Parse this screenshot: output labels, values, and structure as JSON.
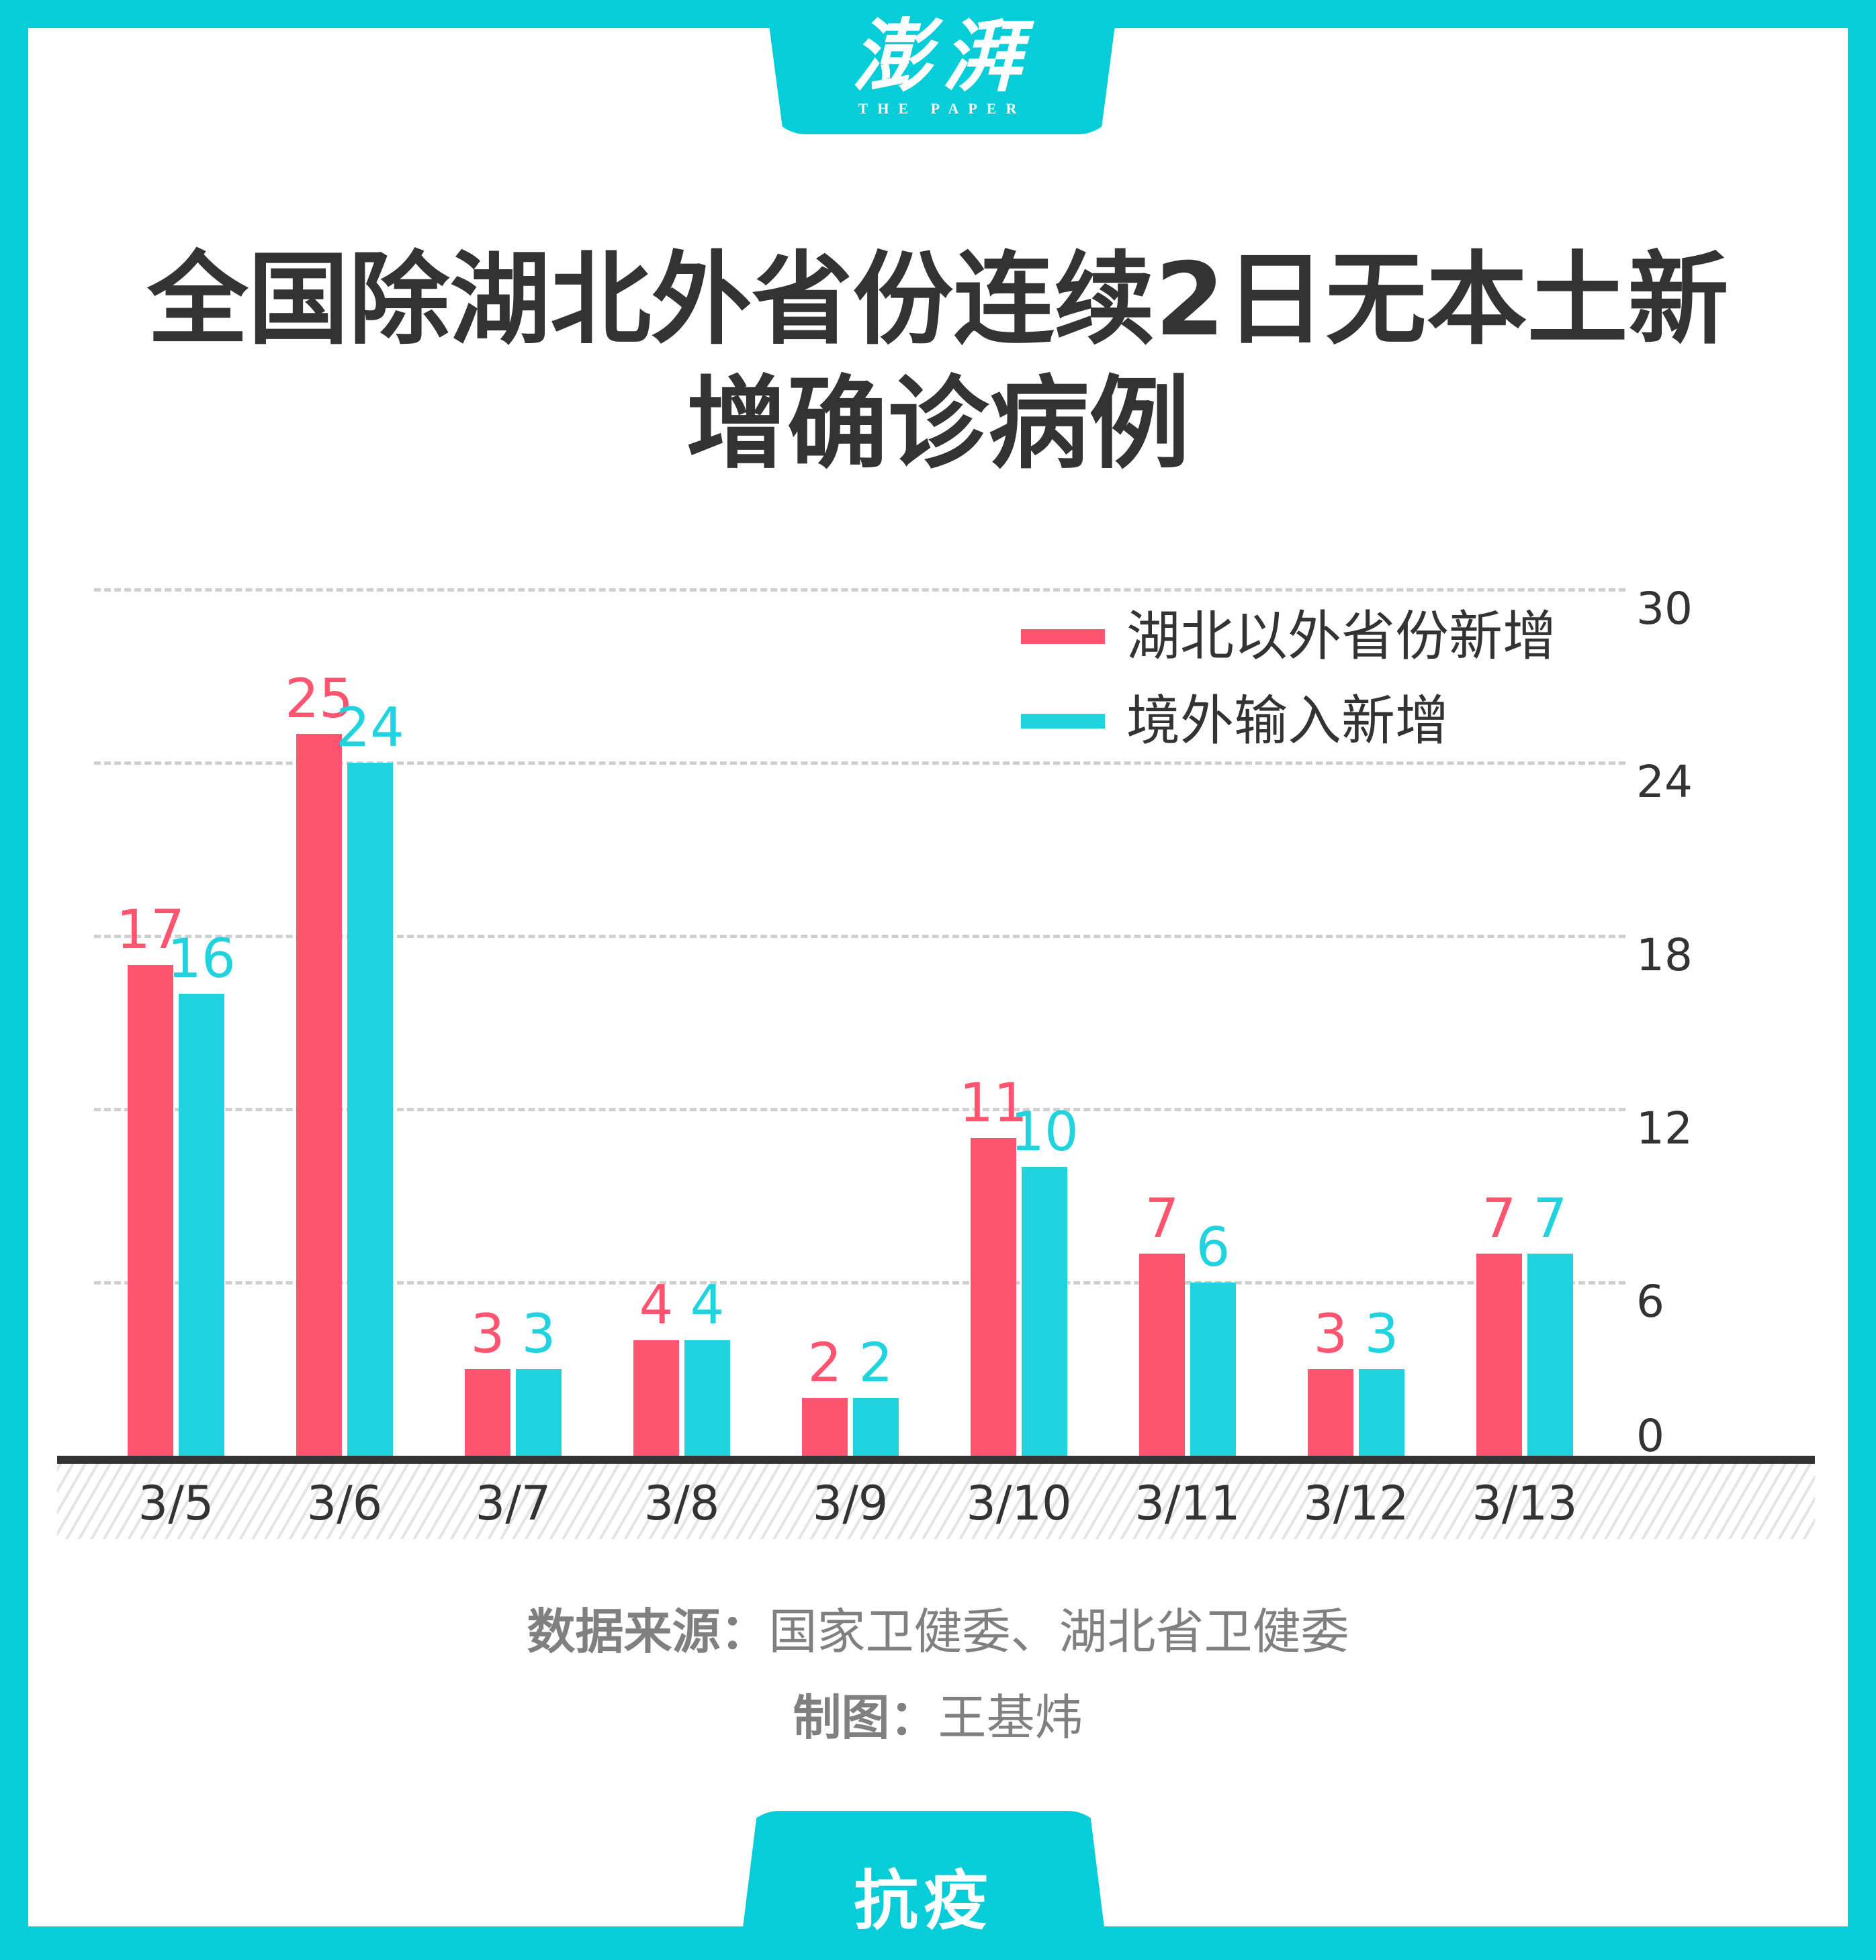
{
  "header": {
    "logo_cn": "澎湃",
    "logo_en": "THE PAPER"
  },
  "title": {
    "line1": "全国除湖北外省份连续2日无本土新",
    "line2": "增确诊病例"
  },
  "colors": {
    "frame": "#06CDD8",
    "series_domestic": "#FF5470",
    "series_imported": "#20D3DE",
    "text": "#333333",
    "footer_text": "#808080"
  },
  "legend": [
    {
      "label": "湖北以外省份新增",
      "color": "#FF5470"
    },
    {
      "label": "境外输入新增",
      "color": "#20D3DE"
    }
  ],
  "yticks": [
    "30",
    "24",
    "18",
    "12",
    "6",
    "0"
  ],
  "footer": {
    "source_label": "数据来源：",
    "source_value": "国家卫健委、湖北省卫健委",
    "credit_label": "制图：",
    "credit_value": "王基炜"
  },
  "bottom_tab": {
    "label": "抗疫"
  },
  "chart_data": {
    "type": "bar",
    "title": "全国除湖北外省份连续2日无本土新增确诊病例",
    "categories": [
      "3/5",
      "3/6",
      "3/7",
      "3/8",
      "3/9",
      "3/10",
      "3/11",
      "3/12",
      "3/13"
    ],
    "series": [
      {
        "name": "湖北以外省份新增",
        "color": "#FF5470",
        "values": [
          17,
          25,
          3,
          4,
          2,
          11,
          7,
          3,
          7
        ]
      },
      {
        "name": "境外输入新增",
        "color": "#20D3DE",
        "values": [
          16,
          24,
          3,
          4,
          2,
          10,
          6,
          3,
          7
        ]
      }
    ],
    "xlabel": "",
    "ylabel": "",
    "ylim": [
      0,
      30
    ],
    "yticks": [
      0,
      6,
      12,
      18,
      24,
      30
    ],
    "y_axis_position": "right",
    "grid": true,
    "grid_style": "dashed",
    "legend_position": "top-right",
    "data_labels": true,
    "source": "国家卫健委、湖北省卫健委",
    "credit": "王基炜"
  }
}
